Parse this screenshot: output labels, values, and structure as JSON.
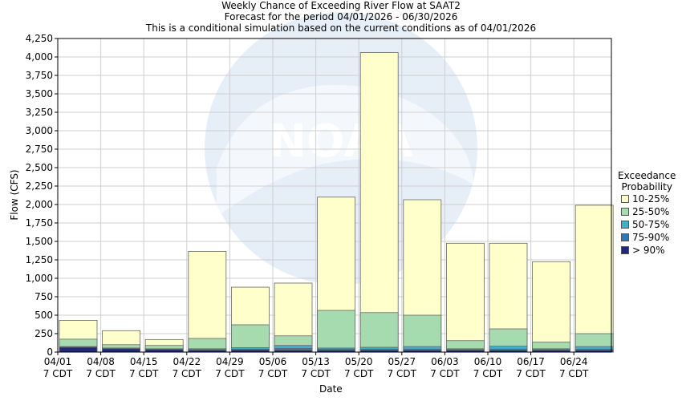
{
  "chart_data": {
    "type": "bar",
    "stacked": true,
    "title": "Weekly Chance of Exceeding River Flow at SAAT2",
    "subtitle": "Forecast for the period 04/01/2026 - 06/30/2026",
    "subtitle2": "This is a conditional simulation based on the current conditions as of 04/01/2026",
    "xlabel": "Date",
    "ylabel": "Flow (CFS)",
    "ylim": [
      0,
      4250
    ],
    "yticks": [
      "0",
      "250",
      "500",
      "750",
      "1,000",
      "1,250",
      "1,500",
      "1,750",
      "2,000",
      "2,250",
      "2,500",
      "2,750",
      "3,000",
      "3,250",
      "3,500",
      "3,750",
      "4,000",
      "4,250"
    ],
    "ytick_values": [
      0,
      250,
      500,
      750,
      1000,
      1250,
      1500,
      1750,
      2000,
      2250,
      2500,
      2750,
      3000,
      3250,
      3500,
      3750,
      4000,
      4250
    ],
    "categories": [
      "04/01",
      "04/08",
      "04/15",
      "04/22",
      "04/29",
      "05/06",
      "05/13",
      "05/20",
      "05/27",
      "06/03",
      "06/10",
      "06/17",
      "06/24"
    ],
    "category_sublabel": "7 CDT",
    "grid": true,
    "legend": {
      "title_lines": [
        "Exceedance",
        "Probability"
      ],
      "placement": "right"
    },
    "series": [
      {
        "name": "> 90%",
        "color": "#1f2a7a",
        "tops": [
          65,
          45,
          35,
          25,
          30,
          25,
          25,
          25,
          25,
          25,
          25,
          25,
          25
        ]
      },
      {
        "name": "75-90%",
        "color": "#2c7bb6",
        "tops": [
          70,
          50,
          40,
          35,
          40,
          50,
          40,
          40,
          40,
          35,
          40,
          35,
          40
        ]
      },
      {
        "name": "50-75%",
        "color": "#3fb0c8",
        "tops": [
          75,
          55,
          45,
          45,
          60,
          90,
          55,
          65,
          75,
          45,
          80,
          45,
          75
        ]
      },
      {
        "name": "25-50%",
        "color": "#a6dbb0",
        "tops": [
          175,
          100,
          90,
          185,
          370,
          220,
          565,
          535,
          500,
          155,
          315,
          135,
          250
        ]
      },
      {
        "name": "10-25%",
        "color": "#ffffcc",
        "tops": [
          430,
          290,
          170,
          1365,
          880,
          935,
          2100,
          4060,
          2065,
          1475,
          1475,
          1225,
          1990
        ]
      }
    ]
  }
}
